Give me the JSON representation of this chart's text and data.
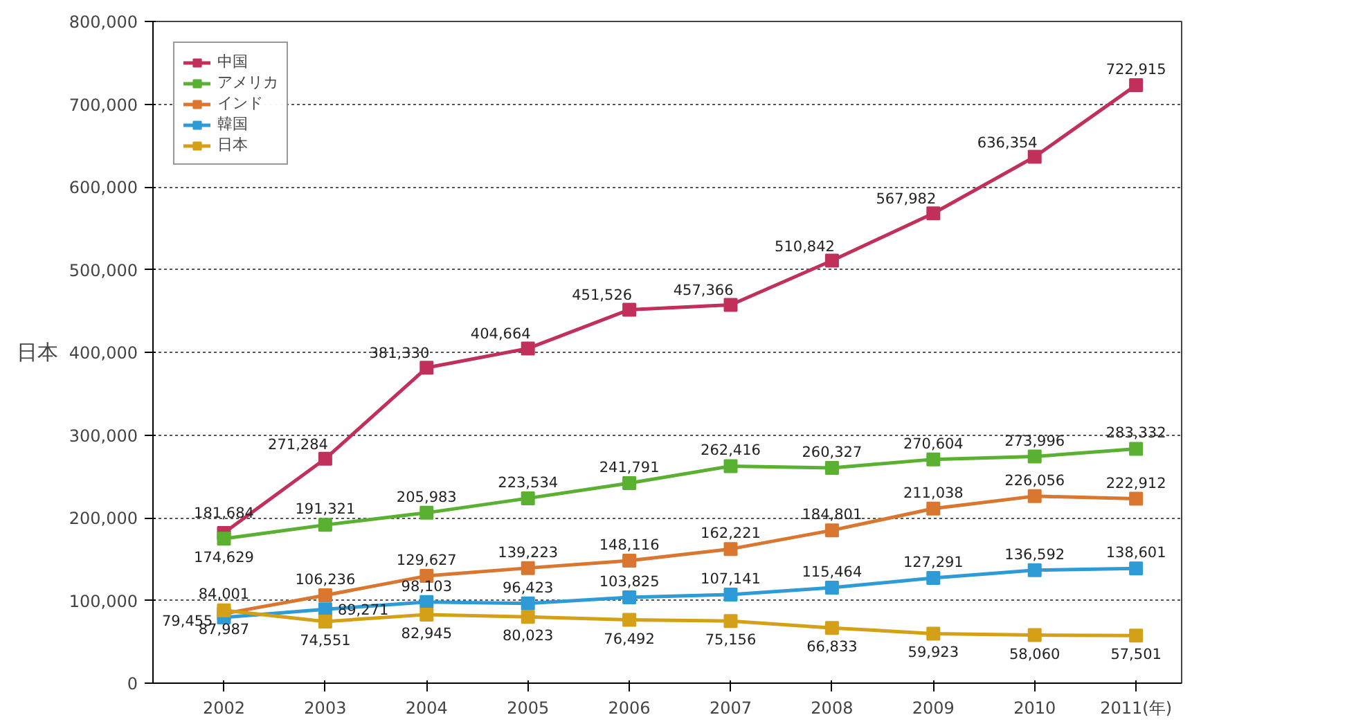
{
  "chart_data": {
    "type": "line",
    "ylabel": "日本",
    "x": [
      2002,
      2003,
      2004,
      2005,
      2006,
      2007,
      2008,
      2009,
      2010,
      2011
    ],
    "xlim": [
      2001.3,
      2011.45
    ],
    "xticks": [
      2002,
      2003,
      2004,
      2005,
      2006,
      2007,
      2008,
      2009,
      2010,
      {
        "value": 2011,
        "label": "2011(年)"
      }
    ],
    "ylim": [
      0,
      800000
    ],
    "yticks": [
      {
        "value": 0,
        "label": "0"
      },
      {
        "value": 100000,
        "label": "100,000"
      },
      {
        "value": 200000,
        "label": "200,000"
      },
      {
        "value": 300000,
        "label": "300,000"
      },
      {
        "value": 400000,
        "label": "400,000"
      },
      {
        "value": 500000,
        "label": "500,000"
      },
      {
        "value": 600000,
        "label": "600,000"
      },
      {
        "value": 700000,
        "label": "700,000"
      },
      {
        "value": 800000,
        "label": "800,000"
      }
    ],
    "series": [
      {
        "name": "中国",
        "color": "#c0305a",
        "values": [
          181684,
          271284,
          381330,
          404664,
          451526,
          457366,
          510842,
          567982,
          636354,
          722915
        ],
        "value_labels": [
          "181,684",
          "271,284",
          "381,330",
          "404,664",
          "451,526",
          "457,366",
          "510,842",
          "567,982",
          "636,354",
          "722,915"
        ]
      },
      {
        "name": "アメリカ",
        "color": "#5ab031",
        "values": [
          174629,
          191321,
          205983,
          223534,
          241791,
          262416,
          260327,
          270604,
          273996,
          283332
        ],
        "value_labels": [
          "174,629",
          "191,321",
          "205,983",
          "223,534",
          "241,791",
          "262,416",
          "260,327",
          "270,604",
          "273,996",
          "283,332"
        ]
      },
      {
        "name": "インド",
        "color": "#d9762f",
        "values": [
          84001,
          106236,
          129627,
          139223,
          148116,
          162221,
          184801,
          211038,
          226056,
          222912
        ],
        "value_labels": [
          "84,001",
          "106,236",
          "129,627",
          "139,223",
          "148,116",
          "162,221",
          "184,801",
          "211,038",
          "226,056",
          "222,912"
        ]
      },
      {
        "name": "韓国",
        "color": "#2e9bd6",
        "values": [
          79455,
          89271,
          98103,
          96423,
          103825,
          107141,
          115464,
          127291,
          136592,
          138601
        ],
        "value_labels": [
          "79,455",
          "89,271",
          "98,103",
          "96,423",
          "103,825",
          "107,141",
          "115,464",
          "127,291",
          "136,592",
          "138,601"
        ]
      },
      {
        "name": "日本",
        "color": "#d4a017",
        "values": [
          87987,
          74551,
          82945,
          80023,
          76492,
          75156,
          66833,
          59923,
          58060,
          57501
        ],
        "value_labels": [
          "87,987",
          "74,551",
          "82,945",
          "80,023",
          "76,492",
          "75,156",
          "66,833",
          "59,923",
          "58,060",
          "57,501"
        ]
      }
    ],
    "grid": "y",
    "legend": "top left",
    "marker": "square",
    "line_style": "solid"
  }
}
